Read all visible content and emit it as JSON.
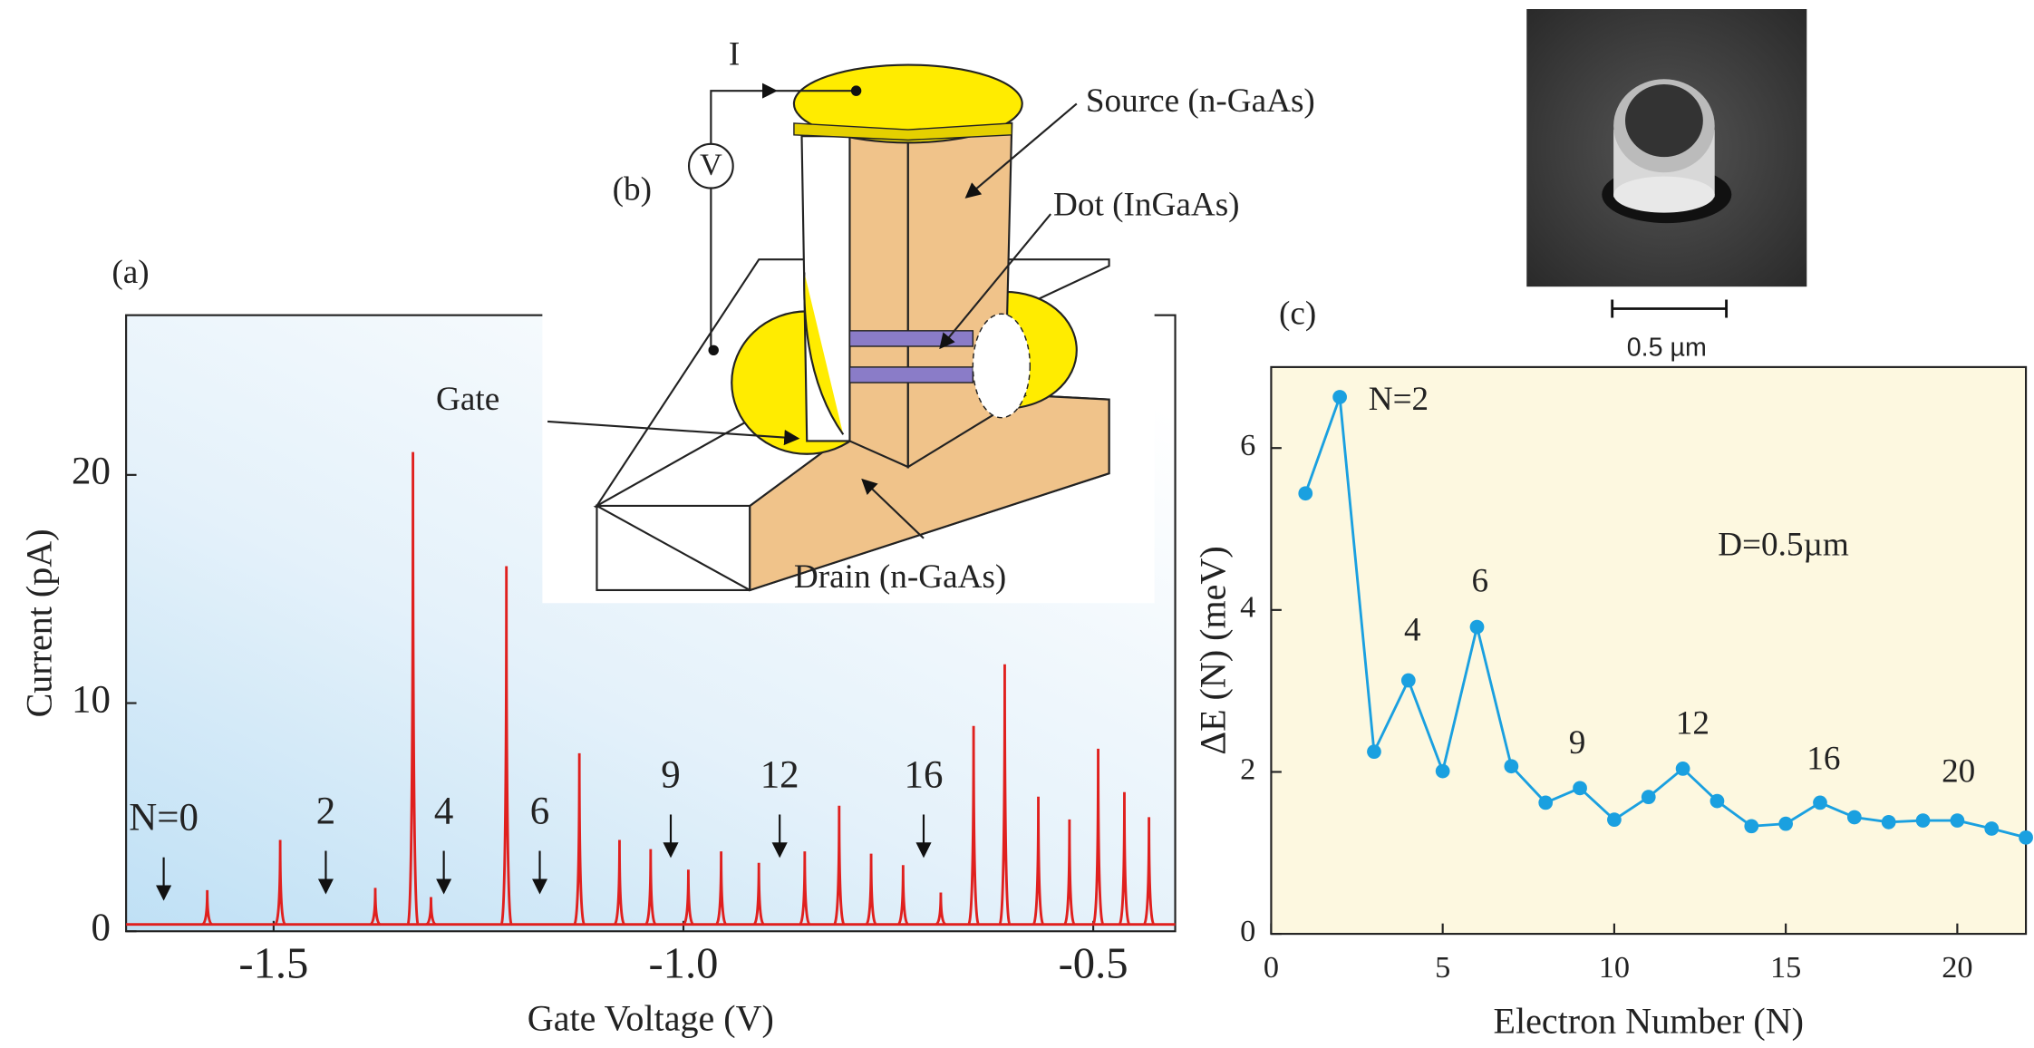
{
  "chart_data": [
    {
      "type": "spectrum",
      "x_label": "Gate Voltage (V)",
      "y_label": "Current (pA)",
      "x": [
        -1.581,
        -1.492,
        -1.376,
        -1.33,
        -1.308,
        -1.216,
        -1.127,
        -1.078,
        -1.04,
        -0.994,
        -0.954,
        -0.908,
        -0.852,
        -0.81,
        -0.771,
        -0.732,
        -0.686,
        -0.646,
        -0.608,
        -0.567,
        -0.529,
        -0.494,
        -0.462,
        -0.432
      ],
      "values": [
        1.8,
        4.0,
        1.9,
        21,
        1.5,
        16,
        7.8,
        4.0,
        3.6,
        2.7,
        3.5,
        3.0,
        3.5,
        5.5,
        3.4,
        2.9,
        1.7,
        9.0,
        11.7,
        5.9,
        4.9,
        8.0,
        6.1,
        5.0
      ],
      "baseline": 0.3,
      "color": "#e0201e",
      "xlim": [
        -1.68,
        -0.4
      ],
      "ylim": [
        0,
        27
      ],
      "xticks": [
        -1.5,
        {
          "value": -1.0,
          "label": "-1.0"
        },
        -0.5
      ],
      "yticks": [
        0,
        10,
        20
      ],
      "annotations": [
        "N=0",
        "2",
        "4",
        "6",
        "9",
        "12",
        "16"
      ]
    },
    {
      "type": "line",
      "x_label": "Electron Number (N)",
      "y_label": "ΔE (N) (meV)",
      "x": [
        1,
        2,
        3,
        4,
        5,
        6,
        7,
        8,
        9,
        10,
        11,
        12,
        13,
        14,
        15,
        16,
        17,
        18,
        19,
        20,
        21,
        22
      ],
      "values": [
        5.44,
        6.63,
        2.25,
        3.13,
        2.01,
        3.79,
        2.07,
        1.62,
        1.8,
        1.41,
        1.69,
        2.04,
        1.64,
        1.33,
        1.36,
        1.62,
        1.44,
        1.38,
        1.4,
        1.4,
        1.3,
        1.19
      ],
      "color": "#1aa0e0",
      "xlim": [
        0,
        22
      ],
      "ylim": [
        0,
        7
      ],
      "xticks": [
        0,
        5,
        10,
        15,
        20
      ],
      "yticks": [
        0,
        2,
        4,
        6
      ],
      "annotations": [
        "N=2",
        "4",
        "6",
        "9",
        "12",
        "16",
        "20",
        "D=0.5µm"
      ]
    }
  ],
  "figure": {
    "panel_labels": [
      "(a)",
      "(b)",
      "(c)"
    ],
    "diagram": {
      "current": "I",
      "voltage": "V",
      "source": "Source (n-GaAs)",
      "dot": "Dot (InGaAs)",
      "gate": "Gate",
      "drain": "Drain (n-GaAs)"
    },
    "scale_bar": "0.5 µm"
  }
}
